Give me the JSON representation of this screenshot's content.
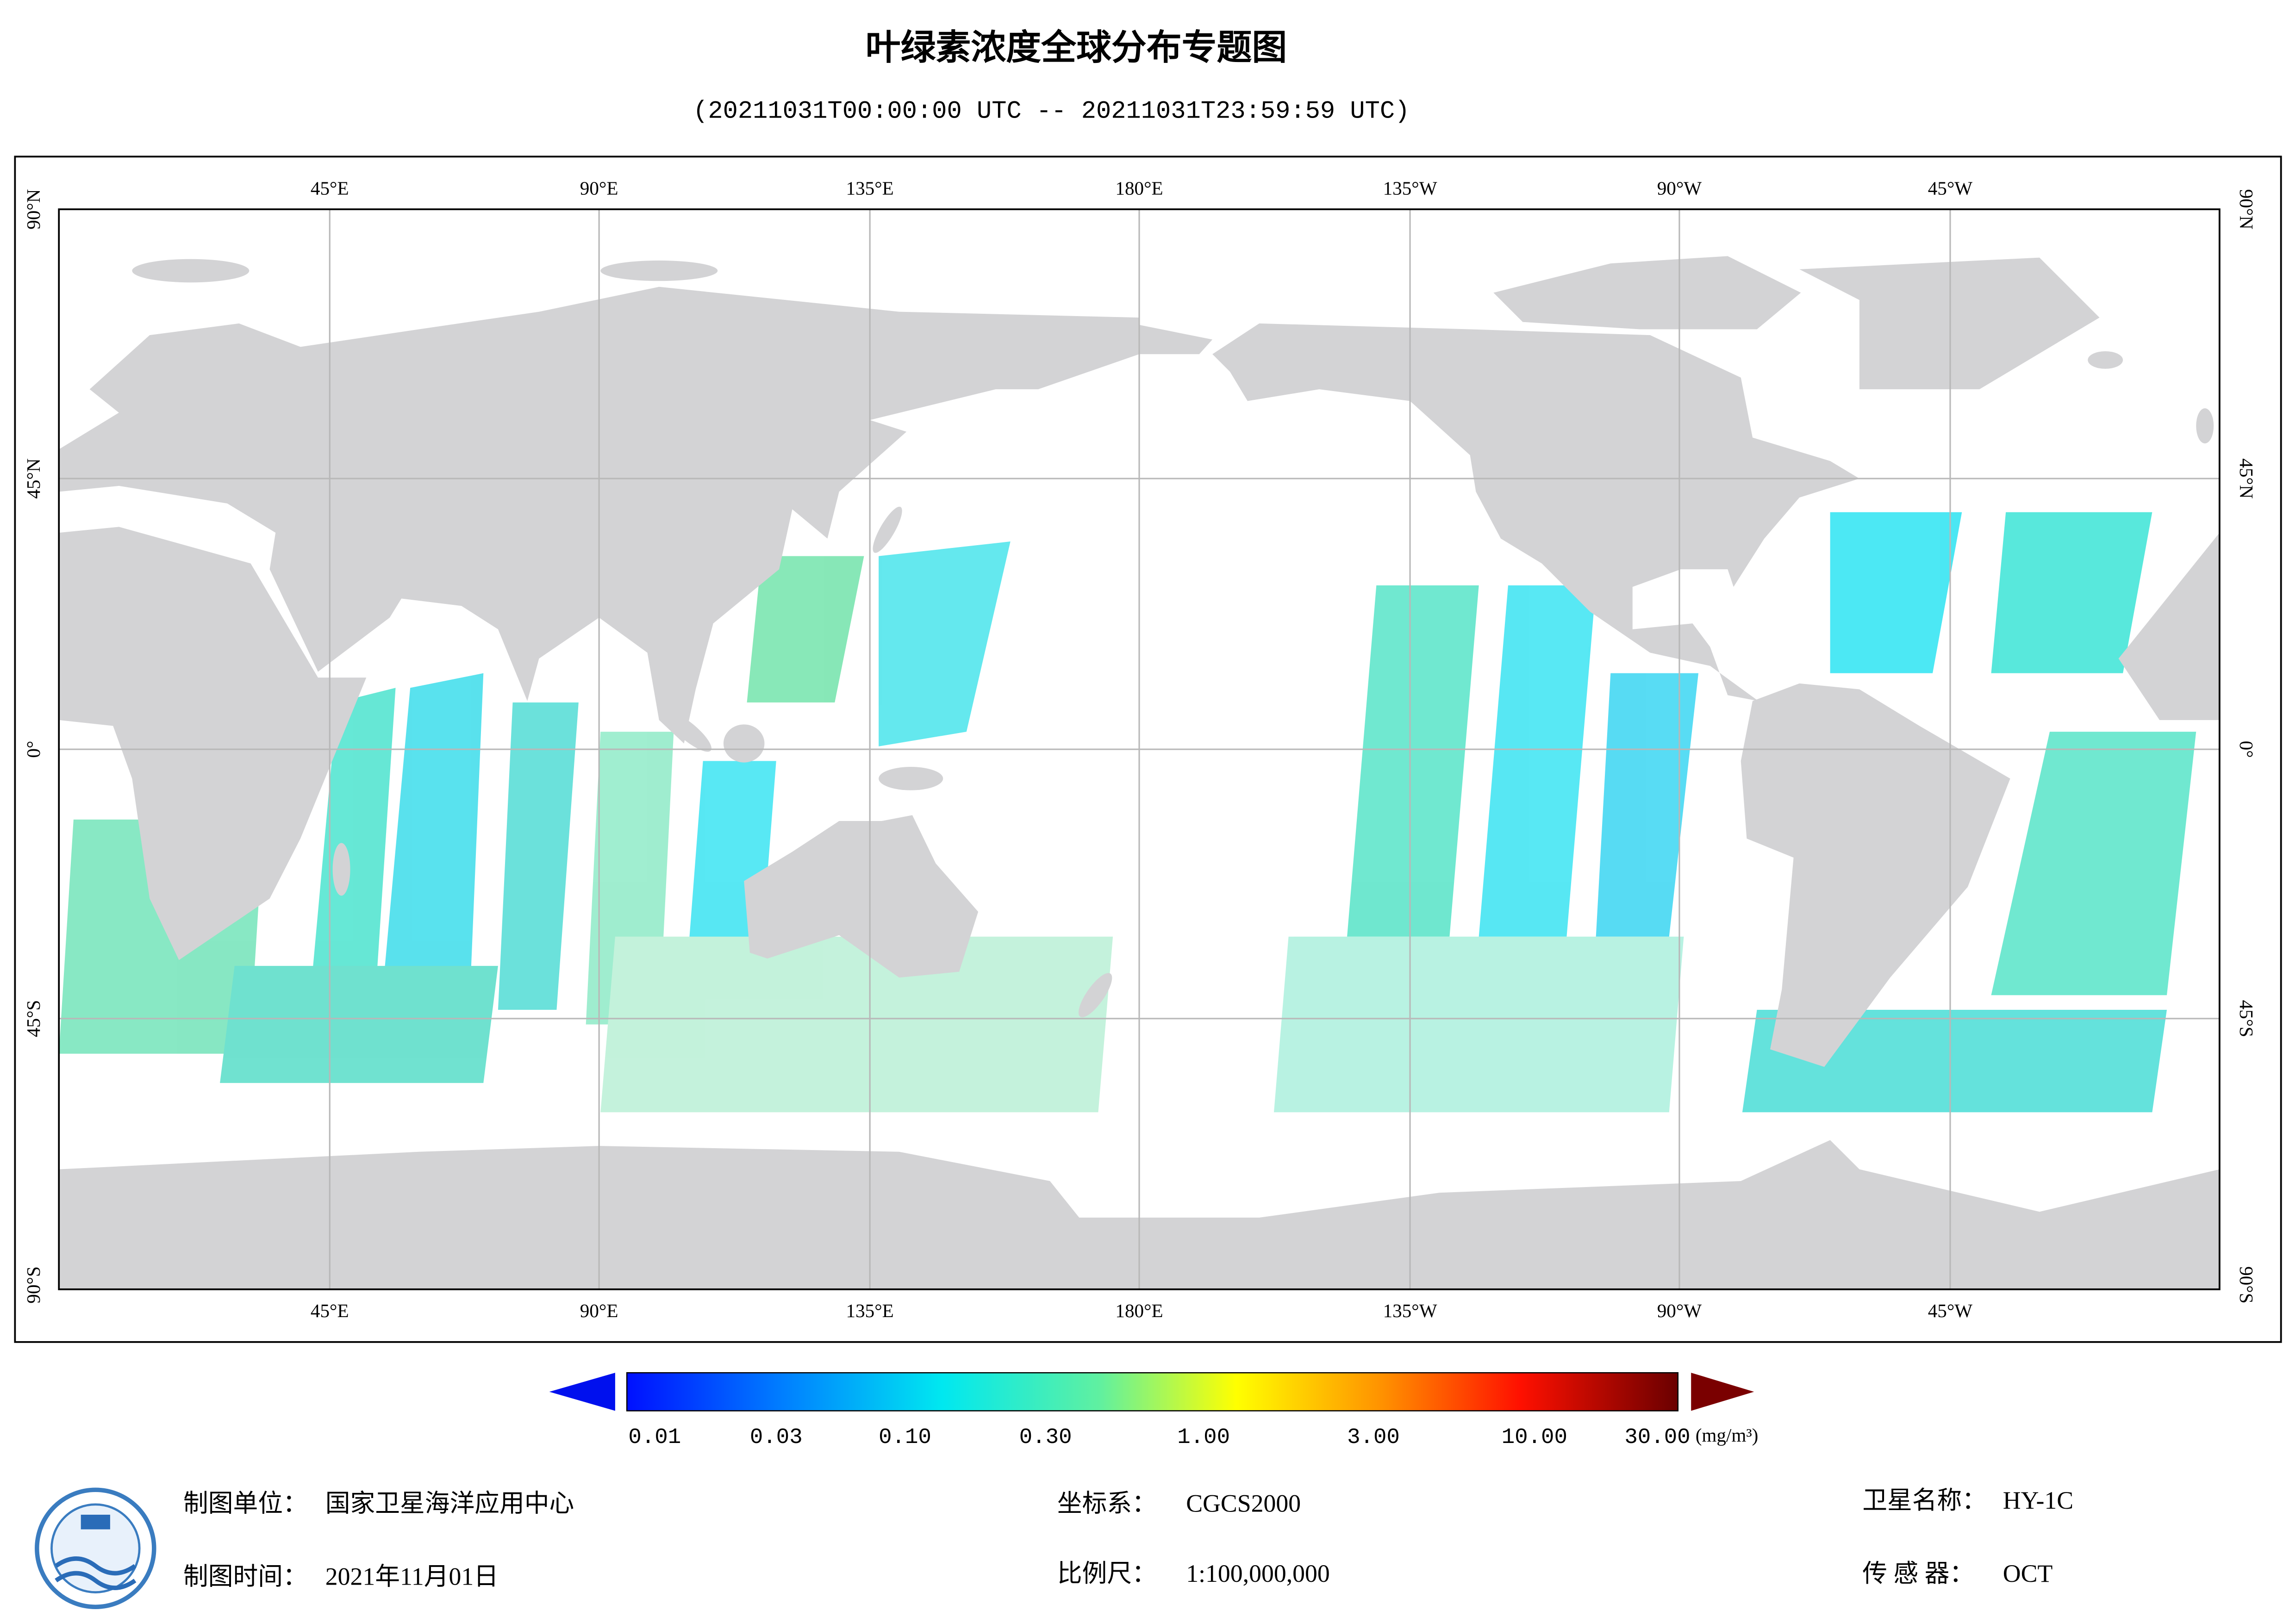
{
  "header": {
    "title": "叶绿素浓度全球分布专题图",
    "subtitle": "(20211031T00:00:00 UTC -- 20211031T23:59:59 UTC)"
  },
  "map": {
    "lon_labels": [
      "45°E",
      "90°E",
      "135°E",
      "180°E",
      "135°W",
      "90°W",
      "45°W"
    ],
    "lat_labels": [
      "90°N",
      "45°N",
      "0°",
      "45°S",
      "90°S"
    ]
  },
  "colorbar": {
    "ticks": [
      "0.01",
      "0.03",
      "0.10",
      "0.30",
      "1.00",
      "3.00",
      "10.00",
      "30.00"
    ],
    "unit": "(mg/m³)"
  },
  "footer": {
    "fields": [
      {
        "label": "制图单位：",
        "value": "国家卫星海洋应用中心"
      },
      {
        "label": "制图时间：",
        "value": "2021年11月01日"
      },
      {
        "label": "坐标系：",
        "value": "CGCS2000"
      },
      {
        "label": "比例尺：",
        "value": "1:100,000,000"
      },
      {
        "label": "卫星名称：",
        "value": "HY-1C"
      },
      {
        "label": "传 感 器：",
        "value": "OCT"
      }
    ]
  }
}
